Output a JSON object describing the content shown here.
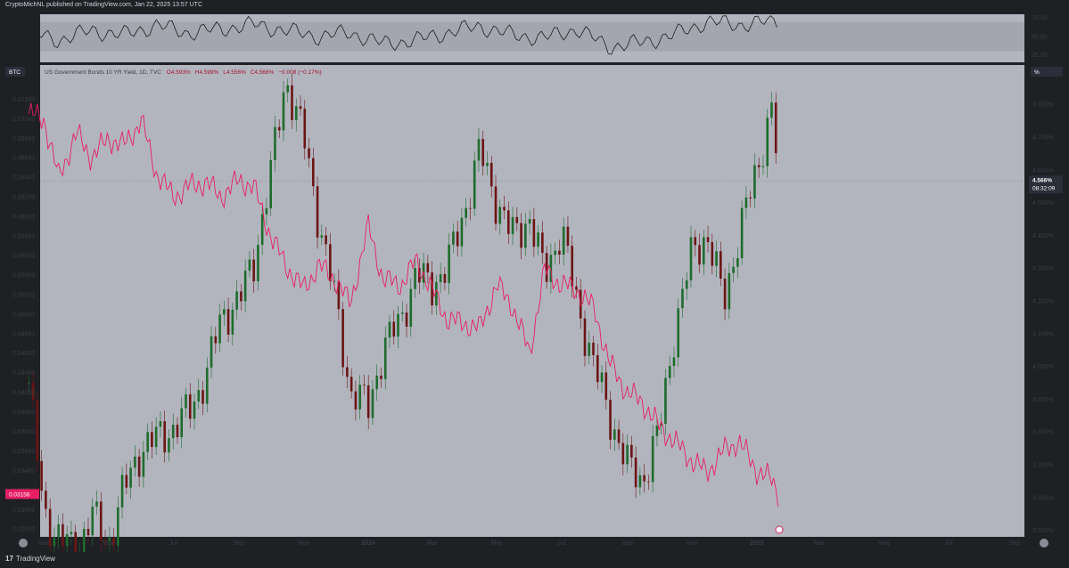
{
  "header": {
    "publisher": "CryptoMichNL published on TradingView.com, Jan 22, 2025 13:57 UTC"
  },
  "legend": {
    "symbol_badge": "BTC",
    "title": "US Government Bonds 10 YR Yield, 1D, TVC",
    "open": "O4.593%",
    "high": "H4.599%",
    "low": "L4.556%",
    "close": "C4.566%",
    "change": "−0.008 (−0.17%)"
  },
  "footer": {
    "brand": "TradingView",
    "brand_mark": "17"
  },
  "colors": {
    "pane_bg": "#b2b5be",
    "candle_up": "#1f6b2e",
    "candle_down": "#6b1515",
    "overlay_line": "#e91e63",
    "rsi_line": "#1e1e1e",
    "rsi_band": "#a3a6af",
    "label_bg": "#2a2e39",
    "btc_label_bg": "#e91e63"
  },
  "chart_data": [
    {
      "type": "line",
      "name": "oscillator",
      "ylim": [
        15,
        80
      ],
      "yticks": [
        "75.00",
        "50.00",
        "25.00"
      ],
      "band": [
        30,
        70
      ],
      "x": [
        "2023-02-15",
        "2023-03-15",
        "2023-04-15",
        "2023-05-15",
        "2023-06-15",
        "2023-07-15",
        "2023-08-15",
        "2023-09-15",
        "2023-10-15",
        "2023-11-15",
        "2023-12-15",
        "2024-01-15",
        "2024-02-15",
        "2024-03-15",
        "2024-04-15",
        "2024-05-15",
        "2024-06-15",
        "2024-07-15",
        "2024-08-15",
        "2024-09-15",
        "2024-10-15",
        "2024-11-15",
        "2024-12-15",
        "2025-01-15"
      ],
      "values": [
        55,
        45,
        58,
        52,
        65,
        55,
        60,
        66,
        58,
        50,
        55,
        40,
        45,
        55,
        64,
        52,
        48,
        60,
        36,
        42,
        52,
        70,
        66,
        70
      ]
    },
    {
      "type": "candlestick",
      "series": [
        {
          "name": "US Government Bonds 10 YR Yield",
          "axis": "right",
          "unit": "%",
          "dates": [
            "2023-02-15",
            "2023-03-01",
            "2023-03-15",
            "2023-04-01",
            "2023-04-15",
            "2023-05-01",
            "2023-05-15",
            "2023-06-01",
            "2023-06-15",
            "2023-07-01",
            "2023-07-15",
            "2023-08-01",
            "2023-08-15",
            "2023-09-01",
            "2023-09-15",
            "2023-10-01",
            "2023-10-15",
            "2023-11-01",
            "2023-11-15",
            "2023-12-01",
            "2023-12-15",
            "2024-01-01",
            "2024-01-15",
            "2024-02-01",
            "2024-02-15",
            "2024-03-01",
            "2024-03-15",
            "2024-04-01",
            "2024-04-15",
            "2024-05-01",
            "2024-05-15",
            "2024-06-01",
            "2024-06-15",
            "2024-07-01",
            "2024-07-15",
            "2024-08-01",
            "2024-08-15",
            "2024-09-01",
            "2024-09-15",
            "2024-10-01",
            "2024-10-15",
            "2024-11-01",
            "2024-11-15",
            "2024-12-01",
            "2024-12-15",
            "2025-01-01",
            "2025-01-15",
            "2025-01-22"
          ],
          "values": [
            3.95,
            3.55,
            3.48,
            3.43,
            3.55,
            3.46,
            3.62,
            3.75,
            3.78,
            3.81,
            3.86,
            3.97,
            4.15,
            4.2,
            4.32,
            4.59,
            4.88,
            4.7,
            4.45,
            4.2,
            3.92,
            3.88,
            4.05,
            4.15,
            4.28,
            4.25,
            4.3,
            4.48,
            4.66,
            4.5,
            4.4,
            4.45,
            4.28,
            4.42,
            4.2,
            4.0,
            3.85,
            3.7,
            3.65,
            3.8,
            4.1,
            4.35,
            4.4,
            4.2,
            4.4,
            4.6,
            4.79,
            4.566
          ],
          "last_label": "4.566%",
          "countdown": "08:32:09"
        },
        {
          "name": "BTC",
          "axis": "left",
          "dates": [
            "2023-02-15",
            "2023-03-01",
            "2023-03-15",
            "2023-04-01",
            "2023-04-15",
            "2023-05-01",
            "2023-05-15",
            "2023-06-01",
            "2023-06-15",
            "2023-07-01",
            "2023-07-15",
            "2023-08-01",
            "2023-08-15",
            "2023-09-01",
            "2023-09-15",
            "2023-10-01",
            "2023-10-15",
            "2023-11-01",
            "2023-11-15",
            "2023-12-01",
            "2023-12-15",
            "2024-01-01",
            "2024-01-15",
            "2024-02-01",
            "2024-02-15",
            "2024-03-01",
            "2024-03-15",
            "2024-04-01",
            "2024-04-15",
            "2024-05-01",
            "2024-05-15",
            "2024-06-01",
            "2024-06-15",
            "2024-07-01",
            "2024-07-15",
            "2024-08-01",
            "2024-08-15",
            "2024-09-01",
            "2024-09-15",
            "2024-10-01",
            "2024-10-15",
            "2024-11-01",
            "2024-11-15",
            "2024-12-01",
            "2024-12-15",
            "2025-01-01",
            "2025-01-15",
            "2025-01-22"
          ],
          "values": [
            0.0705,
            0.07,
            0.064,
            0.0685,
            0.066,
            0.068,
            0.0672,
            0.0698,
            0.0645,
            0.062,
            0.063,
            0.0635,
            0.062,
            0.0637,
            0.063,
            0.058,
            0.055,
            0.0525,
            0.055,
            0.0535,
            0.051,
            0.059,
            0.0535,
            0.053,
            0.0555,
            0.0525,
            0.0495,
            0.049,
            0.0485,
            0.053,
            0.051,
            0.046,
            0.0545,
            0.053,
            0.0525,
            0.0505,
            0.045,
            0.042,
            0.041,
            0.0385,
            0.037,
            0.035,
            0.0338,
            0.036,
            0.037,
            0.034,
            0.033,
            0.03158
          ],
          "last_label": "0.03158"
        }
      ],
      "x_ticks": [
        "Mar",
        "May",
        "Jul",
        "Sep",
        "Nov",
        "2024",
        "Mar",
        "May",
        "Jul",
        "Sep",
        "Nov",
        "2025",
        "Mar",
        "May",
        "Jul",
        "Sep"
      ],
      "x_tick_dates": [
        "2023-03-01",
        "2023-05-01",
        "2023-07-01",
        "2023-09-01",
        "2023-11-01",
        "2024-01-01",
        "2024-03-01",
        "2024-05-01",
        "2024-07-01",
        "2024-09-01",
        "2024-11-01",
        "2025-01-01",
        "2025-03-01",
        "2025-05-01",
        "2025-07-01",
        "2025-09-01"
      ],
      "left_axis": {
        "ylim": [
          0.0272,
          0.0755
        ],
        "ticks": [
          "0.07200",
          "0.07000",
          "0.06800",
          "0.06600",
          "0.06400",
          "0.06200",
          "0.06000",
          "0.05800",
          "0.05600",
          "0.05400",
          "0.05200",
          "0.05000",
          "0.04800",
          "0.04600",
          "0.04400",
          "0.04200",
          "0.04000",
          "0.03800",
          "0.03600",
          "0.03400",
          "0.03200",
          "0.03000",
          "0.02800"
        ]
      },
      "right_axis": {
        "ylim": [
          3.48,
          4.92
        ],
        "unit_badge": "%",
        "ticks": [
          "4.900%",
          "4.800%",
          "4.700%",
          "4.600%",
          "4.500%",
          "4.400%",
          "4.300%",
          "4.200%",
          "4.100%",
          "4.000%",
          "3.900%",
          "3.800%",
          "3.700%",
          "3.600%",
          "3.500%"
        ]
      },
      "grid": false
    }
  ]
}
